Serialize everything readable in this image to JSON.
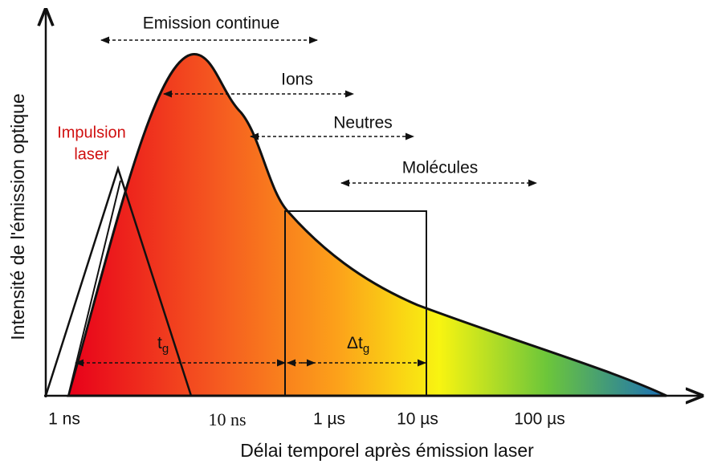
{
  "x_axis": {
    "title": "Délai temporel après émission laser",
    "labels": [
      "1 ns",
      "10 ns",
      "1 µs",
      "10 µs",
      "100 µs"
    ]
  },
  "y_axis": {
    "title": "Intensité de l'émission optique"
  },
  "regions": [
    "Emission continue",
    "Ions",
    "Neutres",
    "Molécules"
  ],
  "pulse_label": [
    "Impulsion",
    "laser"
  ],
  "gate_delay": {
    "base": "t",
    "sub": "g"
  },
  "gate_width": {
    "base": "Δt",
    "sub": "g"
  }
}
